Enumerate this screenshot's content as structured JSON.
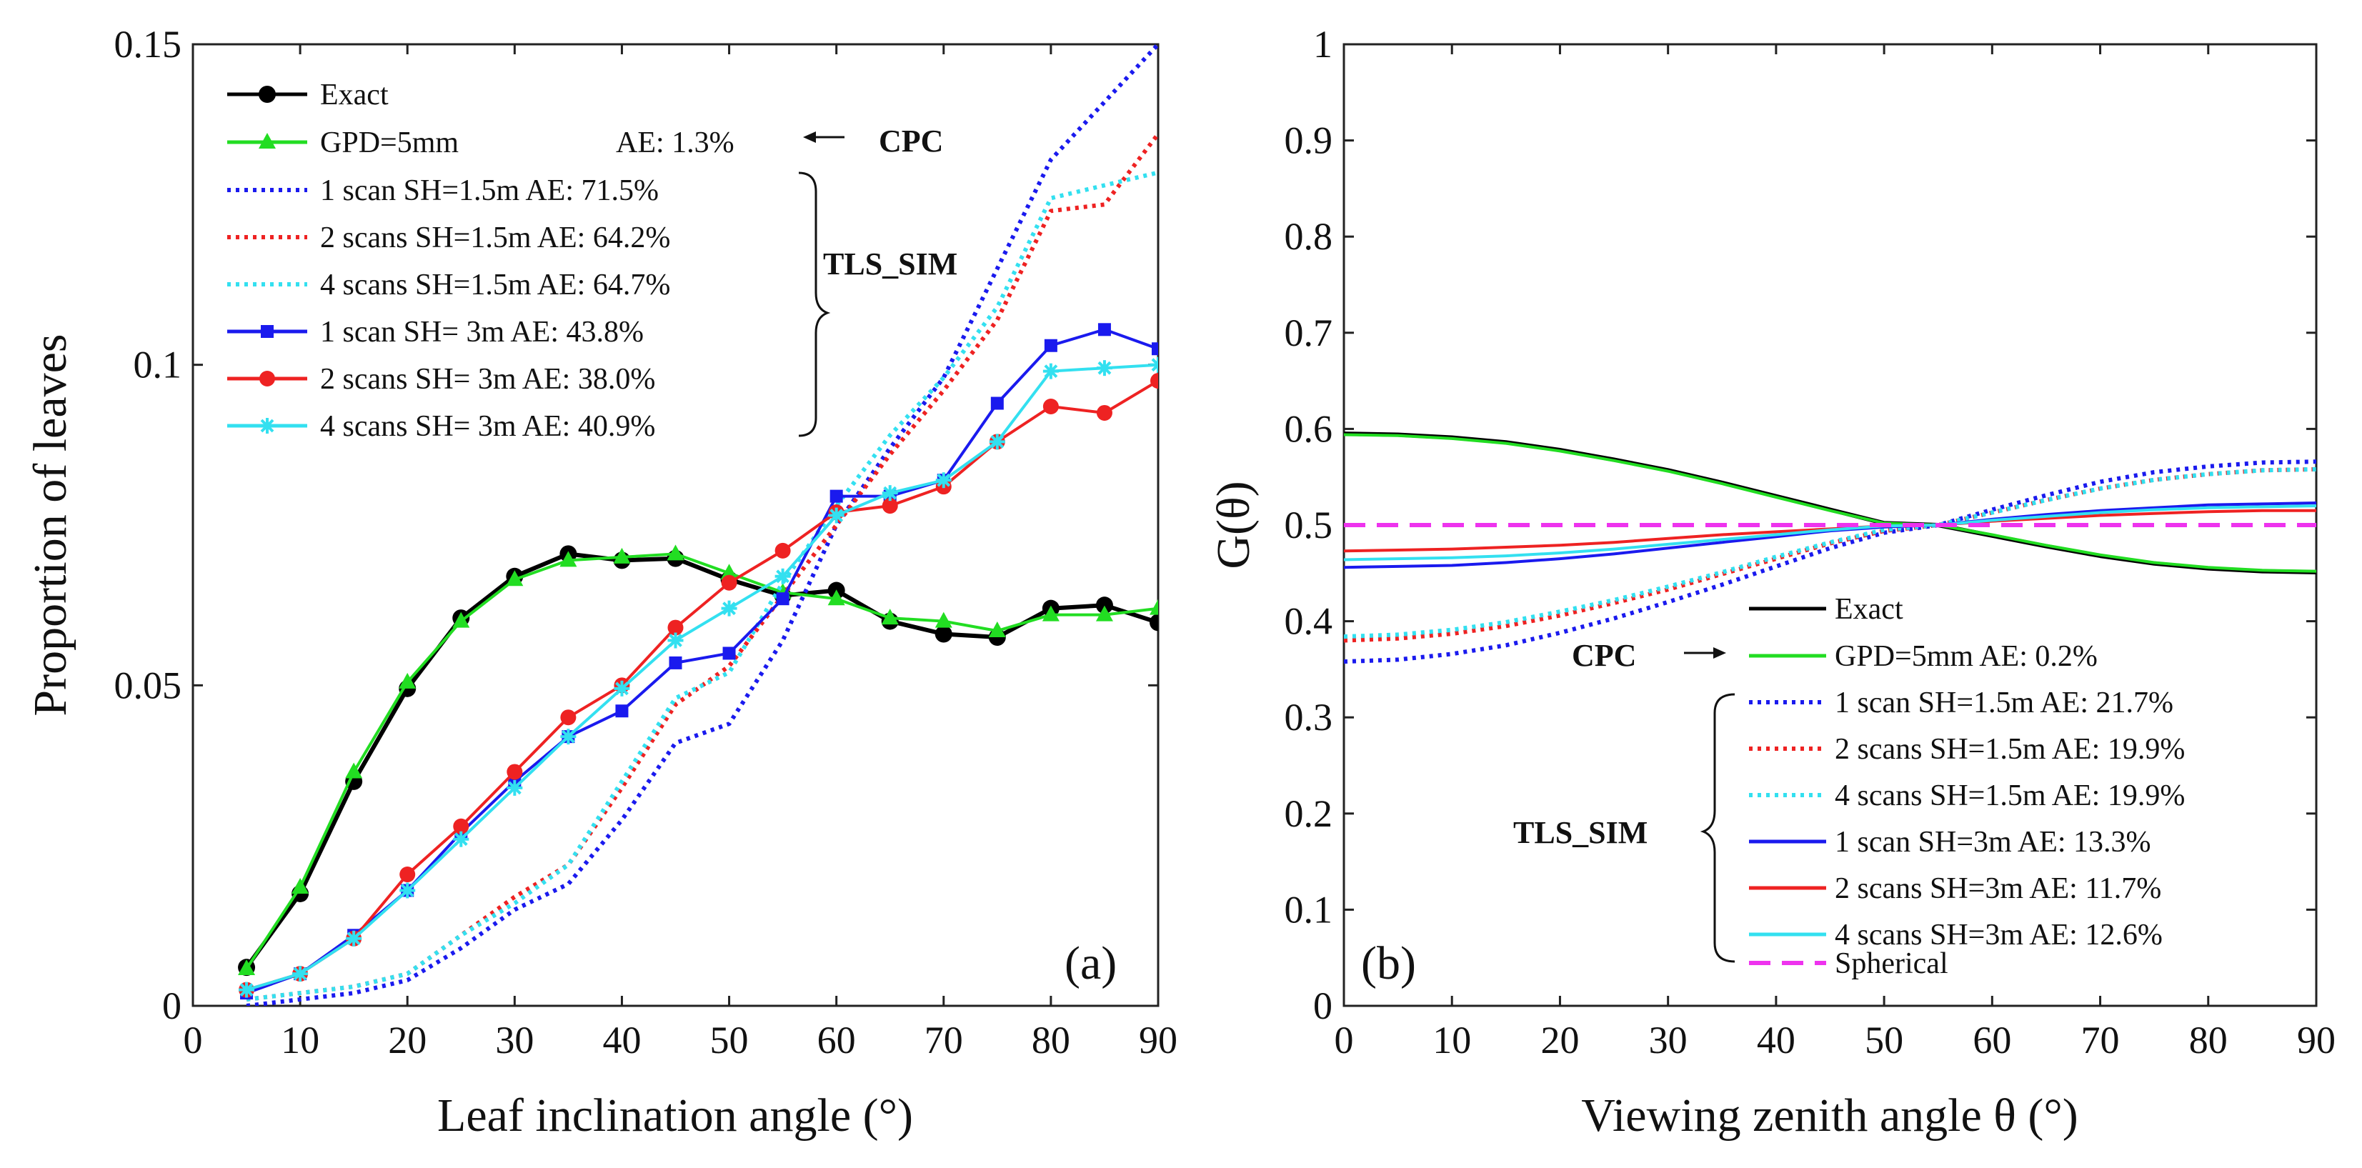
{
  "figure": {
    "colors": {
      "exact": "#000000",
      "gpd": "#22dd22",
      "blue": "#1a1aee",
      "red": "#ee2222",
      "cyan": "#33e0f0",
      "spherical": "#ee33ee"
    }
  },
  "chart_data": [
    {
      "panel": "(a)",
      "type": "line",
      "xlabel": "Leaf inclination angle (°)",
      "ylabel": "Proportion of leaves",
      "xlim": [
        0,
        90
      ],
      "ylim": [
        0,
        0.15
      ],
      "xticks": [
        0,
        10,
        20,
        30,
        40,
        50,
        60,
        70,
        80,
        90
      ],
      "yticks": [
        0,
        0.05,
        0.1,
        0.15
      ],
      "ytick_labels": [
        "0",
        "0.05",
        "0.1",
        "0.15"
      ],
      "x": [
        5,
        10,
        15,
        20,
        25,
        30,
        35,
        40,
        45,
        50,
        55,
        60,
        65,
        70,
        75,
        80,
        85,
        90
      ],
      "annotations": {
        "cpc": "CPC",
        "tls": "TLS_SIM"
      },
      "series": [
        {
          "name": "Exact",
          "ae": "",
          "color_key": "exact",
          "style": "solid",
          "marker": "circle",
          "values": [
            0.006,
            0.0175,
            0.035,
            0.0495,
            0.0605,
            0.067,
            0.0705,
            0.0695,
            0.0698,
            0.0665,
            0.064,
            0.0648,
            0.06,
            0.058,
            0.0575,
            0.062,
            0.0625,
            0.0598
          ]
        },
        {
          "name": "GPD=5mm",
          "ae": "AE: 1.3%",
          "color_key": "gpd",
          "style": "solid",
          "marker": "triangle",
          "values": [
            0.0058,
            0.0185,
            0.0365,
            0.0505,
            0.06,
            0.0665,
            0.0695,
            0.07,
            0.0705,
            0.0675,
            0.0645,
            0.0635,
            0.0605,
            0.06,
            0.0585,
            0.061,
            0.061,
            0.062
          ]
        },
        {
          "name": "1 scan   SH=1.5m AE: 71.5%",
          "ae": "",
          "color_key": "blue",
          "style": "dotted",
          "marker": "none",
          "values": [
            0.0,
            0.001,
            0.002,
            0.004,
            0.009,
            0.015,
            0.019,
            0.029,
            0.041,
            0.044,
            0.057,
            0.075,
            0.087,
            0.098,
            0.115,
            0.132,
            0.141,
            0.15
          ]
        },
        {
          "name": "2 scans SH=1.5m AE: 64.2%",
          "ae": "",
          "color_key": "red",
          "style": "dotted",
          "marker": "none",
          "values": [
            0.001,
            0.002,
            0.003,
            0.005,
            0.011,
            0.017,
            0.022,
            0.034,
            0.047,
            0.053,
            0.064,
            0.075,
            0.086,
            0.096,
            0.107,
            0.124,
            0.125,
            0.136
          ]
        },
        {
          "name": "4 scans SH=1.5m AE: 64.7%",
          "ae": "",
          "color_key": "cyan",
          "style": "dotted",
          "marker": "none",
          "values": [
            0.001,
            0.002,
            0.003,
            0.005,
            0.011,
            0.016,
            0.022,
            0.035,
            0.048,
            0.052,
            0.066,
            0.078,
            0.089,
            0.098,
            0.109,
            0.126,
            0.128,
            0.13
          ]
        },
        {
          "name": "1 scan   SH= 3m   AE: 43.8%",
          "ae": "",
          "color_key": "blue",
          "style": "solid",
          "marker": "square",
          "values": [
            0.002,
            0.005,
            0.011,
            0.018,
            0.027,
            0.035,
            0.042,
            0.046,
            0.0535,
            0.055,
            0.0635,
            0.0795,
            0.0795,
            0.082,
            0.094,
            0.103,
            0.1055,
            0.1025
          ]
        },
        {
          "name": "2 scans SH= 3m   AE: 38.0%",
          "ae": "",
          "color_key": "red",
          "style": "solid",
          "marker": "dot",
          "values": [
            0.0025,
            0.005,
            0.0105,
            0.0205,
            0.028,
            0.0365,
            0.045,
            0.05,
            0.059,
            0.066,
            0.071,
            0.077,
            0.078,
            0.081,
            0.088,
            0.0935,
            0.0925,
            0.0975
          ]
        },
        {
          "name": "4 scans SH= 3m   AE: 40.9%",
          "ae": "",
          "color_key": "cyan",
          "style": "solid",
          "marker": "star",
          "values": [
            0.0025,
            0.005,
            0.0105,
            0.018,
            0.026,
            0.034,
            0.042,
            0.0495,
            0.057,
            0.062,
            0.067,
            0.0765,
            0.08,
            0.082,
            0.088,
            0.099,
            0.0995,
            0.1
          ]
        }
      ]
    },
    {
      "panel": "(b)",
      "type": "line",
      "xlabel": "Viewing zenith angle θ (°)",
      "ylabel": "G(θ)",
      "xlim": [
        0,
        90
      ],
      "ylim": [
        0,
        1
      ],
      "xticks": [
        0,
        10,
        20,
        30,
        40,
        50,
        60,
        70,
        80,
        90
      ],
      "yticks": [
        0,
        0.1,
        0.2,
        0.3,
        0.4,
        0.5,
        0.6,
        0.7,
        0.8,
        0.9,
        1
      ],
      "ytick_labels": [
        "0",
        "0.1",
        "0.2",
        "0.3",
        "0.4",
        "0.5",
        "0.6",
        "0.7",
        "0.8",
        "0.9",
        "1"
      ],
      "x": [
        0,
        5,
        10,
        15,
        20,
        25,
        30,
        35,
        40,
        45,
        50,
        55,
        60,
        65,
        70,
        75,
        80,
        85,
        90
      ],
      "annotations": {
        "cpc": "CPC",
        "tls": "TLS_SIM"
      },
      "series": [
        {
          "name": "Exact",
          "color_key": "exact",
          "style": "solid",
          "values": [
            0.595,
            0.594,
            0.591,
            0.586,
            0.578,
            0.568,
            0.557,
            0.544,
            0.53,
            0.516,
            0.502,
            0.5,
            0.489,
            0.478,
            0.468,
            0.46,
            0.455,
            0.452,
            0.451
          ]
        },
        {
          "name": "GPD=5mm             AE: 0.2%",
          "color_key": "gpd",
          "style": "solid",
          "values": [
            0.594,
            0.593,
            0.59,
            0.585,
            0.577,
            0.567,
            0.556,
            0.543,
            0.529,
            0.515,
            0.502,
            0.5,
            0.49,
            0.479,
            0.469,
            0.461,
            0.456,
            0.453,
            0.452
          ]
        },
        {
          "name": "1 scan   SH=1.5m AE: 21.7%",
          "color_key": "blue",
          "style": "dotted",
          "values": [
            0.358,
            0.36,
            0.366,
            0.375,
            0.388,
            0.403,
            0.42,
            0.438,
            0.457,
            0.476,
            0.492,
            0.5,
            0.516,
            0.531,
            0.545,
            0.555,
            0.561,
            0.565,
            0.566
          ]
        },
        {
          "name": "2 scans SH=1.5m AE: 19.9%",
          "color_key": "red",
          "style": "dotted",
          "values": [
            0.38,
            0.382,
            0.387,
            0.395,
            0.406,
            0.419,
            0.433,
            0.449,
            0.465,
            0.481,
            0.494,
            0.5,
            0.513,
            0.526,
            0.538,
            0.547,
            0.553,
            0.557,
            0.558
          ]
        },
        {
          "name": "4 scans SH=1.5m AE: 19.9%",
          "color_key": "cyan",
          "style": "dotted",
          "values": [
            0.384,
            0.386,
            0.391,
            0.399,
            0.41,
            0.422,
            0.436,
            0.451,
            0.467,
            0.482,
            0.495,
            0.5,
            0.513,
            0.526,
            0.538,
            0.547,
            0.553,
            0.557,
            0.558
          ]
        },
        {
          "name": "1 scan   SH=3m     AE: 13.3%",
          "color_key": "blue",
          "style": "solid",
          "values": [
            0.456,
            0.457,
            0.458,
            0.461,
            0.465,
            0.47,
            0.476,
            0.482,
            0.488,
            0.494,
            0.498,
            0.5,
            0.506,
            0.511,
            0.515,
            0.518,
            0.521,
            0.522,
            0.523
          ]
        },
        {
          "name": "2 scans SH=3m     AE: 11.7%",
          "color_key": "red",
          "style": "solid",
          "values": [
            0.473,
            0.474,
            0.475,
            0.477,
            0.479,
            0.482,
            0.486,
            0.49,
            0.493,
            0.496,
            0.499,
            0.5,
            0.504,
            0.507,
            0.51,
            0.512,
            0.514,
            0.515,
            0.515
          ]
        },
        {
          "name": "4 scans SH=3m     AE: 12.6%",
          "color_key": "cyan",
          "style": "solid",
          "values": [
            0.464,
            0.465,
            0.466,
            0.468,
            0.471,
            0.475,
            0.48,
            0.485,
            0.49,
            0.495,
            0.499,
            0.5,
            0.505,
            0.509,
            0.513,
            0.516,
            0.518,
            0.519,
            0.52
          ]
        },
        {
          "name": "Spherical",
          "color_key": "spherical",
          "style": "dashed",
          "values": [
            0.5,
            0.5,
            0.5,
            0.5,
            0.5,
            0.5,
            0.5,
            0.5,
            0.5,
            0.5,
            0.5,
            0.5,
            0.5,
            0.5,
            0.5,
            0.5,
            0.5,
            0.5,
            0.5
          ]
        }
      ]
    }
  ]
}
